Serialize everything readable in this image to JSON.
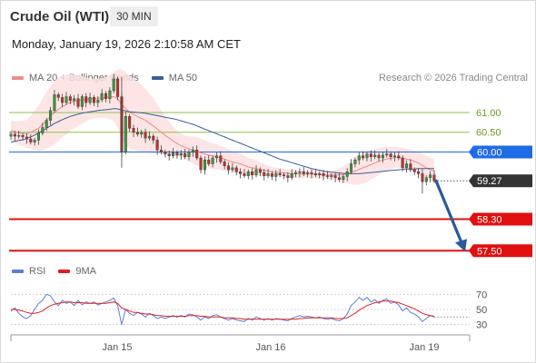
{
  "header": {
    "title": "Crude Oil (WTI)",
    "timeframe": "30 MIN",
    "datetime": "Monday, January 19, 2026 2:10:58 AM CET",
    "copyright": "Research © 2026 Trading Central"
  },
  "legend": {
    "main": [
      {
        "label": "MA 20 + Bollinger Bands",
        "color": "#f08a8a"
      },
      {
        "label": "MA 50",
        "color": "#3a5f9a"
      }
    ],
    "rsi": [
      {
        "label": "RSI",
        "color": "#5b7fd6"
      },
      {
        "label": "9MA",
        "color": "#e02020"
      }
    ]
  },
  "colors": {
    "bullish": "#3a9a3a",
    "bearish": "#c0302a",
    "bb_fill": "#fde0e0",
    "ma20": "#f08a8a",
    "ma50": "#3a5f9a",
    "resistance": "#8bc34a",
    "pivot": "#1e6be6",
    "support": "#e01010",
    "current": "#333333",
    "arrow": "#2a5a9a"
  },
  "chart_data": [
    {
      "type": "candlestick",
      "ylim": [
        57.3,
        61.55
      ],
      "x_ticks": [
        "Jan 15",
        "Jan 16",
        "Jan 19"
      ],
      "levels": [
        {
          "value": 61.0,
          "label": "61.00",
          "kind": "resistance"
        },
        {
          "value": 60.5,
          "label": "60.50",
          "kind": "resistance"
        },
        {
          "value": 60.0,
          "label": "60.00",
          "kind": "pivot"
        },
        {
          "value": 59.27,
          "label": "59.27",
          "kind": "current"
        },
        {
          "value": 58.3,
          "label": "58.30",
          "kind": "support"
        },
        {
          "value": 57.5,
          "label": "57.50",
          "kind": "support"
        }
      ],
      "close": [
        60.45,
        60.4,
        60.42,
        60.38,
        60.33,
        60.25,
        60.3,
        60.48,
        60.62,
        60.8,
        61.05,
        61.45,
        61.38,
        61.25,
        61.4,
        61.3,
        61.35,
        61.15,
        61.4,
        61.25,
        61.38,
        61.25,
        61.32,
        61.48,
        61.35,
        61.55,
        61.85,
        61.4,
        60.0,
        60.9,
        60.6,
        60.5,
        60.45,
        60.5,
        60.35,
        60.4,
        60.3,
        60.05,
        60.0,
        59.95,
        59.9,
        59.98,
        59.92,
        59.96,
        59.88,
        60.0,
        60.05,
        59.85,
        59.55,
        59.8,
        59.7,
        59.85,
        59.9,
        59.75,
        59.65,
        59.55,
        59.6,
        59.5,
        59.45,
        59.4,
        59.5,
        59.42,
        59.55,
        59.48,
        59.4,
        59.45,
        59.38,
        59.45,
        59.42,
        59.4,
        59.35,
        59.45,
        59.48,
        59.5,
        59.45,
        59.48,
        59.45,
        59.42,
        59.45,
        59.4,
        59.38,
        59.4,
        59.35,
        59.3,
        59.38,
        59.5,
        59.7,
        59.8,
        59.9,
        59.85,
        59.95,
        59.88,
        59.92,
        59.85,
        59.92,
        59.95,
        59.88,
        59.9,
        59.85,
        59.6,
        59.7,
        59.55,
        59.5,
        59.45,
        59.25,
        59.35,
        59.42,
        59.27
      ],
      "ma20": [
        60.55,
        60.5,
        60.48,
        60.47,
        60.46,
        60.5,
        60.55,
        60.6,
        60.7,
        60.8,
        60.9,
        61.0,
        61.08,
        61.15,
        61.2,
        61.25,
        61.28,
        61.3,
        61.32,
        61.33,
        61.34,
        61.35,
        61.36,
        61.37,
        61.38,
        61.39,
        61.4,
        61.35,
        61.2,
        61.1,
        61.0,
        60.95,
        60.9,
        60.85,
        60.8,
        60.73,
        60.66,
        60.58,
        60.5,
        60.42,
        60.35,
        60.28,
        60.22,
        60.16,
        60.12,
        60.08,
        60.05,
        60.02,
        59.98,
        59.95,
        59.92,
        59.9,
        59.88,
        59.85,
        59.82,
        59.78,
        59.75,
        59.72,
        59.7,
        59.66,
        59.62,
        59.6,
        59.58,
        59.56,
        59.54,
        59.52,
        59.5,
        59.49,
        59.48,
        59.47,
        59.46,
        59.45,
        59.45,
        59.44,
        59.44,
        59.44,
        59.44,
        59.43,
        59.43,
        59.43,
        59.42,
        59.42,
        59.42,
        59.42,
        59.43,
        59.45,
        59.48,
        59.52,
        59.56,
        59.6,
        59.64,
        59.68,
        59.72,
        59.76,
        59.8,
        59.82,
        59.84,
        59.86,
        59.86,
        59.84,
        59.82,
        59.8,
        59.76,
        59.72,
        59.66,
        59.6,
        59.55,
        59.52
      ],
      "ma50": [
        60.25,
        60.27,
        60.29,
        60.31,
        60.34,
        60.38,
        60.43,
        60.48,
        60.54,
        60.6,
        60.66,
        60.72,
        60.77,
        60.82,
        60.86,
        60.9,
        60.93,
        60.96,
        60.98,
        61.0,
        61.02,
        61.03,
        61.05,
        61.06,
        61.07,
        61.08,
        61.1,
        61.09,
        61.06,
        61.04,
        61.02,
        61.01,
        61.0,
        60.99,
        60.98,
        60.96,
        60.94,
        60.92,
        60.9,
        60.88,
        60.86,
        60.84,
        60.82,
        60.79,
        60.76,
        60.73,
        60.7,
        60.66,
        60.62,
        60.58,
        60.54,
        60.5,
        60.46,
        60.42,
        60.38,
        60.34,
        60.3,
        60.26,
        60.22,
        60.18,
        60.14,
        60.1,
        60.06,
        60.02,
        59.98,
        59.94,
        59.9,
        59.86,
        59.82,
        59.79,
        59.76,
        59.73,
        59.7,
        59.67,
        59.64,
        59.61,
        59.58,
        59.56,
        59.54,
        59.52,
        59.5,
        59.49,
        59.48,
        59.47,
        59.46,
        59.45,
        59.45,
        59.45,
        59.45,
        59.46,
        59.47,
        59.48,
        59.49,
        59.5,
        59.51,
        59.52,
        59.53,
        59.54,
        59.55,
        59.56,
        59.57,
        59.57,
        59.57,
        59.58,
        59.58,
        59.58,
        59.58,
        59.58
      ],
      "bb_width": [
        0.25,
        0.28,
        0.3,
        0.32,
        0.35,
        0.42,
        0.5,
        0.58,
        0.66,
        0.72,
        0.76,
        0.8,
        0.8,
        0.78,
        0.76,
        0.72,
        0.68,
        0.64,
        0.6,
        0.56,
        0.52,
        0.5,
        0.5,
        0.5,
        0.52,
        0.56,
        0.62,
        0.75,
        0.9,
        0.92,
        0.92,
        0.9,
        0.88,
        0.85,
        0.8,
        0.75,
        0.7,
        0.62,
        0.55,
        0.48,
        0.42,
        0.36,
        0.32,
        0.3,
        0.3,
        0.32,
        0.34,
        0.36,
        0.36,
        0.35,
        0.34,
        0.33,
        0.32,
        0.31,
        0.3,
        0.29,
        0.28,
        0.27,
        0.26,
        0.25,
        0.24,
        0.22,
        0.2,
        0.18,
        0.16,
        0.14,
        0.12,
        0.11,
        0.1,
        0.1,
        0.1,
        0.1,
        0.1,
        0.1,
        0.1,
        0.1,
        0.1,
        0.1,
        0.1,
        0.1,
        0.1,
        0.11,
        0.13,
        0.16,
        0.2,
        0.25,
        0.3,
        0.35,
        0.38,
        0.4,
        0.4,
        0.38,
        0.36,
        0.34,
        0.32,
        0.3,
        0.28,
        0.27,
        0.26,
        0.26,
        0.26,
        0.26,
        0.27,
        0.28,
        0.29,
        0.3,
        0.3,
        0.3
      ],
      "projection": {
        "from": 59.27,
        "to": 57.5,
        "direction": "down"
      }
    },
    {
      "type": "line",
      "ylim": [
        20,
        80
      ],
      "y_ticks": [
        30,
        50,
        70
      ],
      "series": [
        {
          "name": "RSI",
          "values": [
            48,
            52,
            45,
            40,
            38,
            42,
            50,
            58,
            62,
            70,
            68,
            60,
            55,
            62,
            58,
            60,
            55,
            62,
            56,
            60,
            58,
            60,
            56,
            58,
            60,
            62,
            65,
            55,
            30,
            50,
            45,
            42,
            46,
            44,
            40,
            45,
            42,
            38,
            40,
            38,
            40,
            42,
            40,
            42,
            40,
            44,
            43,
            40,
            36,
            40,
            38,
            42,
            43,
            40,
            38,
            36,
            38,
            36,
            35,
            34,
            38,
            36,
            40,
            38,
            36,
            38,
            36,
            38,
            37,
            36,
            35,
            38,
            40,
            42,
            40,
            41,
            40,
            39,
            40,
            38,
            37,
            38,
            36,
            35,
            38,
            44,
            55,
            60,
            66,
            62,
            66,
            60,
            63,
            58,
            62,
            64,
            58,
            60,
            56,
            48,
            52,
            46,
            44,
            40,
            34,
            38,
            42,
            40
          ]
        },
        {
          "name": "9MA",
          "values": [
            50,
            50,
            49,
            48,
            46,
            45,
            45,
            46,
            48,
            52,
            55,
            57,
            58,
            59,
            60,
            60,
            59,
            59,
            59,
            58,
            58,
            58,
            58,
            58,
            58,
            59,
            60,
            58,
            52,
            50,
            48,
            46,
            46,
            45,
            44,
            44,
            43,
            42,
            42,
            41,
            41,
            41,
            41,
            41,
            41,
            42,
            42,
            42,
            41,
            41,
            40,
            40,
            40,
            40,
            39,
            39,
            39,
            38,
            38,
            37,
            37,
            37,
            37,
            37,
            37,
            37,
            37,
            37,
            37,
            37,
            37,
            37,
            37,
            38,
            38,
            39,
            39,
            39,
            39,
            39,
            39,
            39,
            38,
            38,
            38,
            39,
            42,
            45,
            49,
            52,
            55,
            57,
            59,
            60,
            61,
            61,
            61,
            60,
            59,
            57,
            55,
            53,
            51,
            48,
            45,
            43,
            42,
            41
          ]
        }
      ]
    }
  ]
}
